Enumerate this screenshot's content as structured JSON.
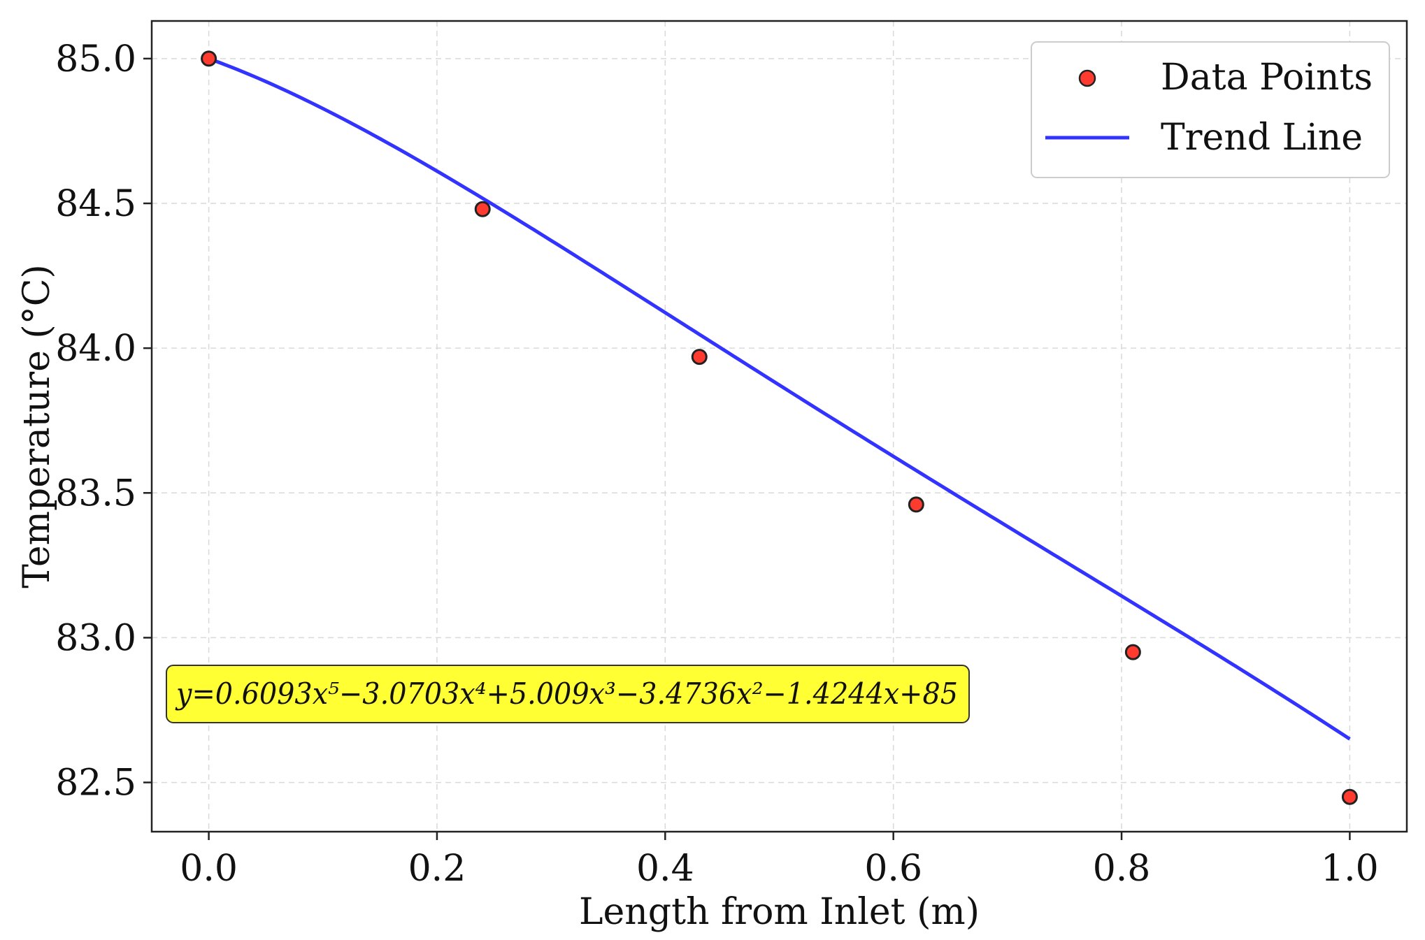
{
  "chart_data": {
    "type": "scatter",
    "title": "",
    "xlabel": "Length from Inlet (m)",
    "ylabel": "Temperature (°C)",
    "xlim": [
      -0.05,
      1.05
    ],
    "ylim": [
      82.33,
      85.13
    ],
    "xticks": [
      0.0,
      0.2,
      0.4,
      0.6,
      0.8,
      1.0
    ],
    "xtick_labels": [
      "0.0",
      "0.2",
      "0.4",
      "0.6",
      "0.8",
      "1.0"
    ],
    "yticks": [
      82.5,
      83.0,
      83.5,
      84.0,
      84.5,
      85.0
    ],
    "ytick_labels": [
      "82.5",
      "83.0",
      "83.5",
      "84.0",
      "84.5",
      "85.0"
    ],
    "grid": true,
    "legend_position": "top-right",
    "series": [
      {
        "name": "Data Points",
        "kind": "scatter",
        "color": "#ff3b30",
        "edge_color": "#222222",
        "x": [
          0.0,
          0.24,
          0.43,
          0.62,
          0.81,
          1.0
        ],
        "y": [
          85.0,
          84.48,
          83.97,
          83.46,
          82.95,
          82.45
        ]
      },
      {
        "name": "Trend Line",
        "kind": "line",
        "color": "#3333ff",
        "coefficients_desc": [
          0.6093,
          -3.0703,
          5.009,
          -3.4736,
          -1.4244,
          85
        ]
      }
    ],
    "annotation": {
      "text": "y=0.6093x⁵−3.0703x⁴+5.009x³−3.4736x²−1.4244x+85",
      "background": "#ffff33"
    }
  }
}
